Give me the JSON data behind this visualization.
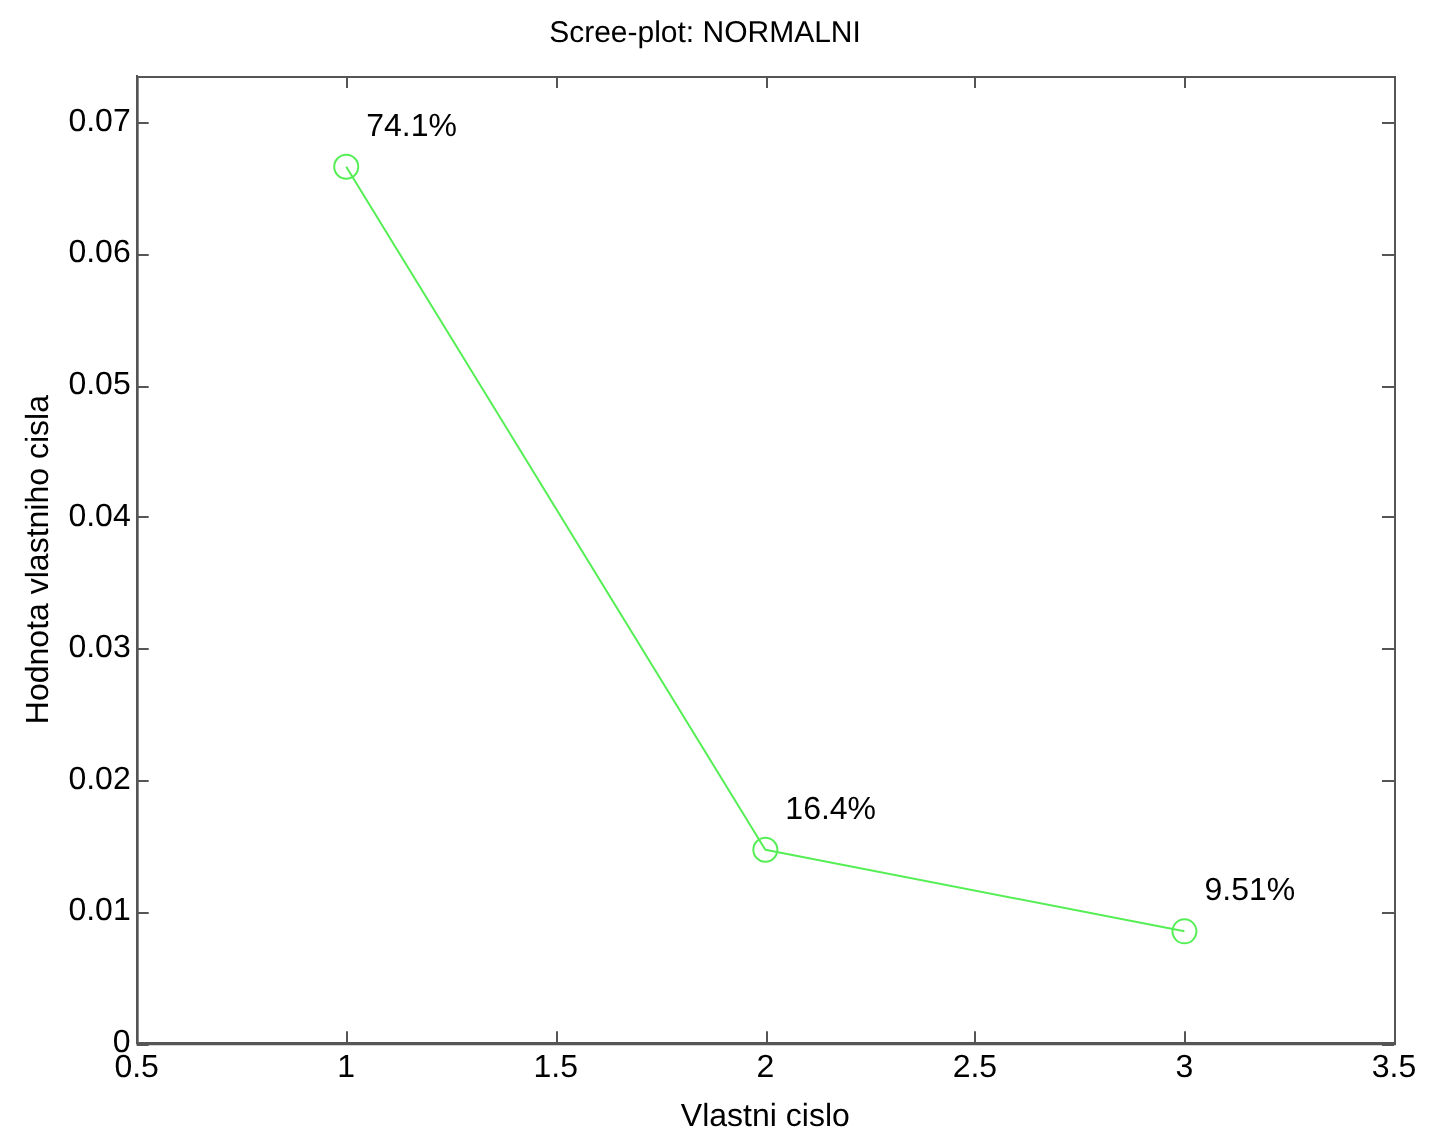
{
  "chart_data": {
    "type": "line",
    "title": "Scree-plot: NORMALNI",
    "xlabel": "Vlastni cislo",
    "ylabel": "Hodnota vlastniho cisla",
    "x": [
      1,
      2,
      3
    ],
    "series": [
      {
        "color": "#55ee55",
        "values": [
          0.0666,
          0.0147,
          0.0085
        ]
      }
    ],
    "marker": "circle",
    "line_style": "solid",
    "grid": false,
    "legend": false,
    "xlim": [
      0.5,
      3.5
    ],
    "xticks": [
      0.5,
      1,
      1.5,
      2,
      2.5,
      3,
      3.5
    ],
    "ylim": [
      0,
      0.0735
    ],
    "yticks": [
      0,
      0.01,
      0.02,
      0.03,
      0.04,
      0.05,
      0.06,
      0.07
    ],
    "annotations": [
      {
        "text": "74.1%",
        "x": 1,
        "y": 0.0666
      },
      {
        "text": "16.4%",
        "x": 2,
        "y": 0.0147
      },
      {
        "text": "9.51%",
        "x": 3,
        "y": 0.0085
      }
    ]
  }
}
